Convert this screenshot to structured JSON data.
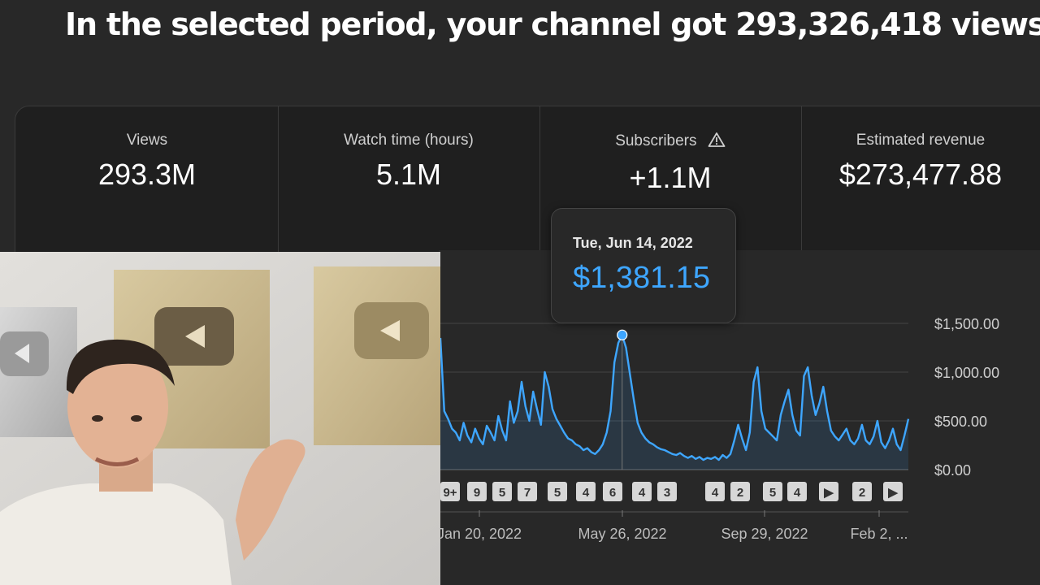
{
  "headline": "In the selected period, your channel got 293,326,418 views",
  "metrics": [
    {
      "label": "Views",
      "value": "293.3M"
    },
    {
      "label": "Watch time (hours)",
      "value": "5.1M"
    },
    {
      "label": "Subscribers",
      "value": "+1.1M"
    },
    {
      "label": "Estimated revenue",
      "value": "$273,477.88"
    }
  ],
  "tooltip": {
    "date": "Tue, Jun 14, 2022",
    "amount": "$1,381.15"
  },
  "colors": {
    "line": "#3ea6ff",
    "background": "#282828",
    "card": "#1f1f1f"
  },
  "chart_data": {
    "type": "area",
    "ylim": [
      0,
      1500
    ],
    "yticks": [
      "$1,500.00",
      "$1,000.00",
      "$500.00",
      "$0.00"
    ],
    "xticks": [
      "Jan 20, 2022",
      "May 26, 2022",
      "Sep 29, 2022",
      "Feb 2, ..."
    ],
    "values": [
      1350,
      600,
      520,
      420,
      380,
      300,
      480,
      350,
      280,
      420,
      320,
      260,
      450,
      380,
      300,
      550,
      400,
      300,
      700,
      480,
      600,
      900,
      650,
      500,
      800,
      620,
      460,
      1000,
      850,
      620,
      520,
      450,
      380,
      320,
      300,
      260,
      240,
      200,
      220,
      180,
      160,
      200,
      260,
      380,
      600,
      1100,
      1300,
      1381,
      1250,
      980,
      720,
      480,
      380,
      320,
      280,
      260,
      230,
      210,
      200,
      180,
      160,
      150,
      170,
      140,
      120,
      140,
      110,
      130,
      100,
      120,
      110,
      130,
      100,
      150,
      120,
      160,
      300,
      460,
      320,
      200,
      380,
      900,
      1050,
      600,
      420,
      380,
      340,
      300,
      560,
      700,
      820,
      560,
      400,
      350,
      960,
      1050,
      760,
      560,
      680,
      850,
      600,
      400,
      340,
      300,
      360,
      420,
      300,
      260,
      320,
      460,
      300,
      260,
      340,
      500,
      280,
      220,
      300,
      420,
      260,
      200,
      350,
      520
    ],
    "highlight": {
      "label": "Tue, Jun 14, 2022",
      "value": 1381.15
    },
    "annotations": [
      "9+",
      "9",
      "5",
      "7",
      "5",
      "4",
      "6",
      "4",
      "3",
      "4",
      "2",
      "5",
      "4",
      "▶",
      "2",
      "▶"
    ]
  }
}
